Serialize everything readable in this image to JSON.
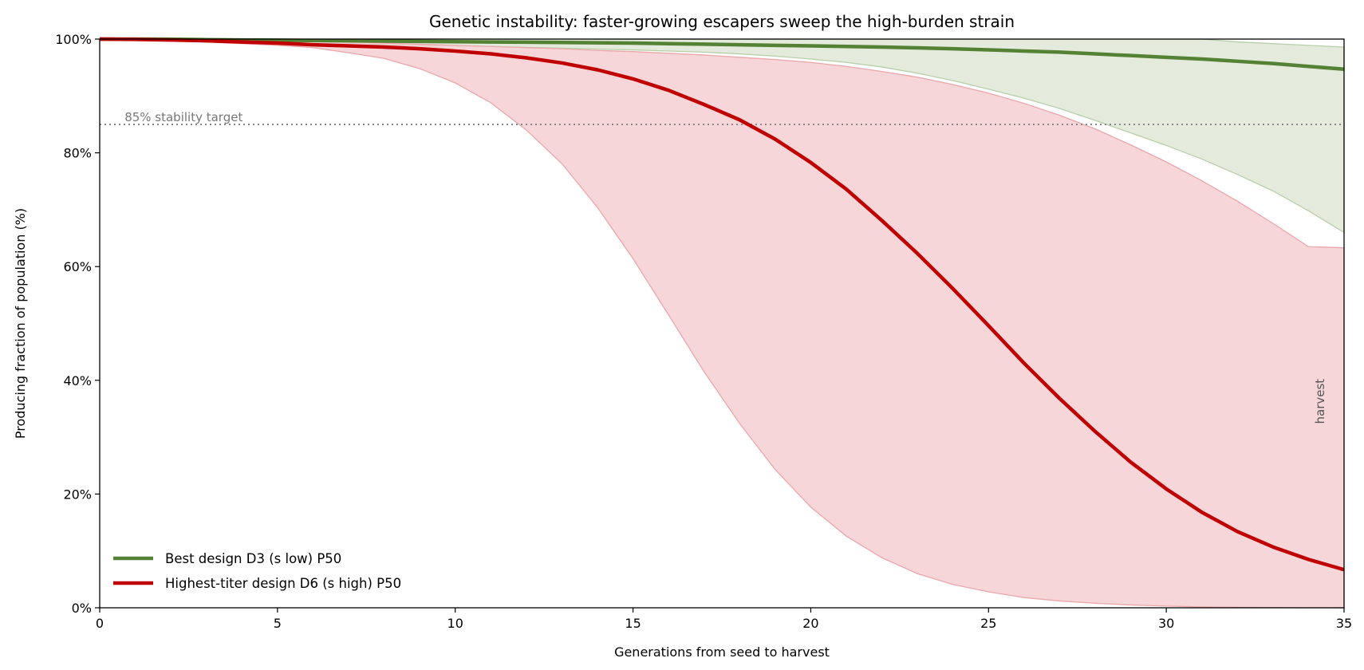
{
  "chart_data": {
    "type": "line",
    "title": "Genetic instability: faster-growing escapers sweep the high-burden strain",
    "xlabel": "Generations from seed to harvest",
    "ylabel": "Producing fraction of population  (%)",
    "xlim": [
      0,
      35
    ],
    "ylim": [
      0,
      100
    ],
    "x_ticks": [
      0,
      5,
      10,
      15,
      20,
      25,
      30,
      35
    ],
    "y_ticks": [
      0,
      20,
      40,
      60,
      80,
      100
    ],
    "y_tick_suffix": "%",
    "grid": false,
    "legend_position": "lower-left",
    "reference_line": {
      "y": 85,
      "label": "85% stability target",
      "style": "dotted",
      "color": "#888888"
    },
    "vertical_annotation": {
      "x": 35,
      "label": "harvest"
    },
    "x": [
      0,
      1,
      2,
      3,
      4,
      5,
      6,
      7,
      8,
      9,
      10,
      11,
      12,
      13,
      14,
      15,
      16,
      17,
      18,
      19,
      20,
      21,
      22,
      23,
      24,
      25,
      26,
      27,
      28,
      29,
      30,
      31,
      32,
      33,
      34,
      35
    ],
    "series": [
      {
        "name": "Best design D3 (s low)  P50",
        "color": "#548235",
        "band_color": "#dfe8d6",
        "band_edge_color": "#b9cfa9",
        "median": [
          100,
          100,
          99.99,
          99.9,
          99.85,
          99.8,
          99.75,
          99.7,
          99.65,
          99.6,
          99.55,
          99.5,
          99.45,
          99.4,
          99.35,
          99.3,
          99.2,
          99.1,
          99.0,
          98.9,
          98.8,
          98.7,
          98.6,
          98.45,
          98.3,
          98.1,
          97.9,
          97.7,
          97.4,
          97.1,
          96.8,
          96.5,
          96.1,
          95.7,
          95.2,
          94.7
        ],
        "band_upper": [
          100,
          100,
          100,
          100,
          100,
          100,
          100,
          100,
          100,
          100,
          100,
          100,
          100,
          100,
          100,
          100,
          100,
          100,
          100,
          100,
          100,
          100,
          100,
          100,
          100,
          100,
          100,
          100,
          100,
          100,
          100,
          100,
          99.5,
          99.2,
          98.9,
          98.6
        ],
        "band_lower": [
          100,
          99.9,
          99.8,
          99.65,
          99.5,
          99.3,
          99.2,
          99.1,
          99.0,
          98.9,
          98.8,
          98.7,
          98.55,
          98.4,
          98.25,
          98.1,
          97.9,
          97.7,
          97.4,
          97.0,
          96.5,
          95.9,
          95.1,
          94.0,
          92.7,
          91.2,
          89.6,
          87.8,
          85.7,
          83.5,
          81.3,
          78.9,
          76.2,
          73.3,
          69.8,
          66.0
        ]
      },
      {
        "name": "Highest-titer design D6 (s high)  P50",
        "color": "#c00000",
        "band_color": "#f4cfd1",
        "band_edge_color": "#eba7aa",
        "median": [
          100,
          99.95,
          99.85,
          99.7,
          99.5,
          99.3,
          99.0,
          98.8,
          98.6,
          98.3,
          97.9,
          97.4,
          96.7,
          95.8,
          94.6,
          93.0,
          91.0,
          88.5,
          85.8,
          82.4,
          78.3,
          73.6,
          68.1,
          62.3,
          56.1,
          49.6,
          43.0,
          36.8,
          31.0,
          25.6,
          20.9,
          16.8,
          13.4,
          10.7,
          8.5,
          6.7
        ],
        "band_upper": [
          100,
          100,
          100,
          99.95,
          99.9,
          99.8,
          99.7,
          99.5,
          99.3,
          99.1,
          98.9,
          98.7,
          98.5,
          98.3,
          98.0,
          97.8,
          97.5,
          97.2,
          96.8,
          96.4,
          95.9,
          95.2,
          94.3,
          93.3,
          92.0,
          90.5,
          88.7,
          86.6,
          84.2,
          81.4,
          78.4,
          75.1,
          71.5,
          67.6,
          63.5,
          63.3
        ],
        "band_lower": [
          100,
          99.9,
          99.7,
          99.5,
          99.2,
          98.9,
          98.5,
          97.6,
          96.6,
          94.8,
          92.3,
          88.8,
          84.0,
          78.1,
          70.4,
          61.4,
          51.5,
          41.5,
          32.4,
          24.3,
          17.7,
          12.6,
          8.8,
          6.0,
          4.1,
          2.8,
          1.8,
          1.2,
          0.8,
          0.5,
          0.3,
          0.15,
          0.08,
          0.04,
          0.02,
          0.01
        ]
      }
    ]
  }
}
